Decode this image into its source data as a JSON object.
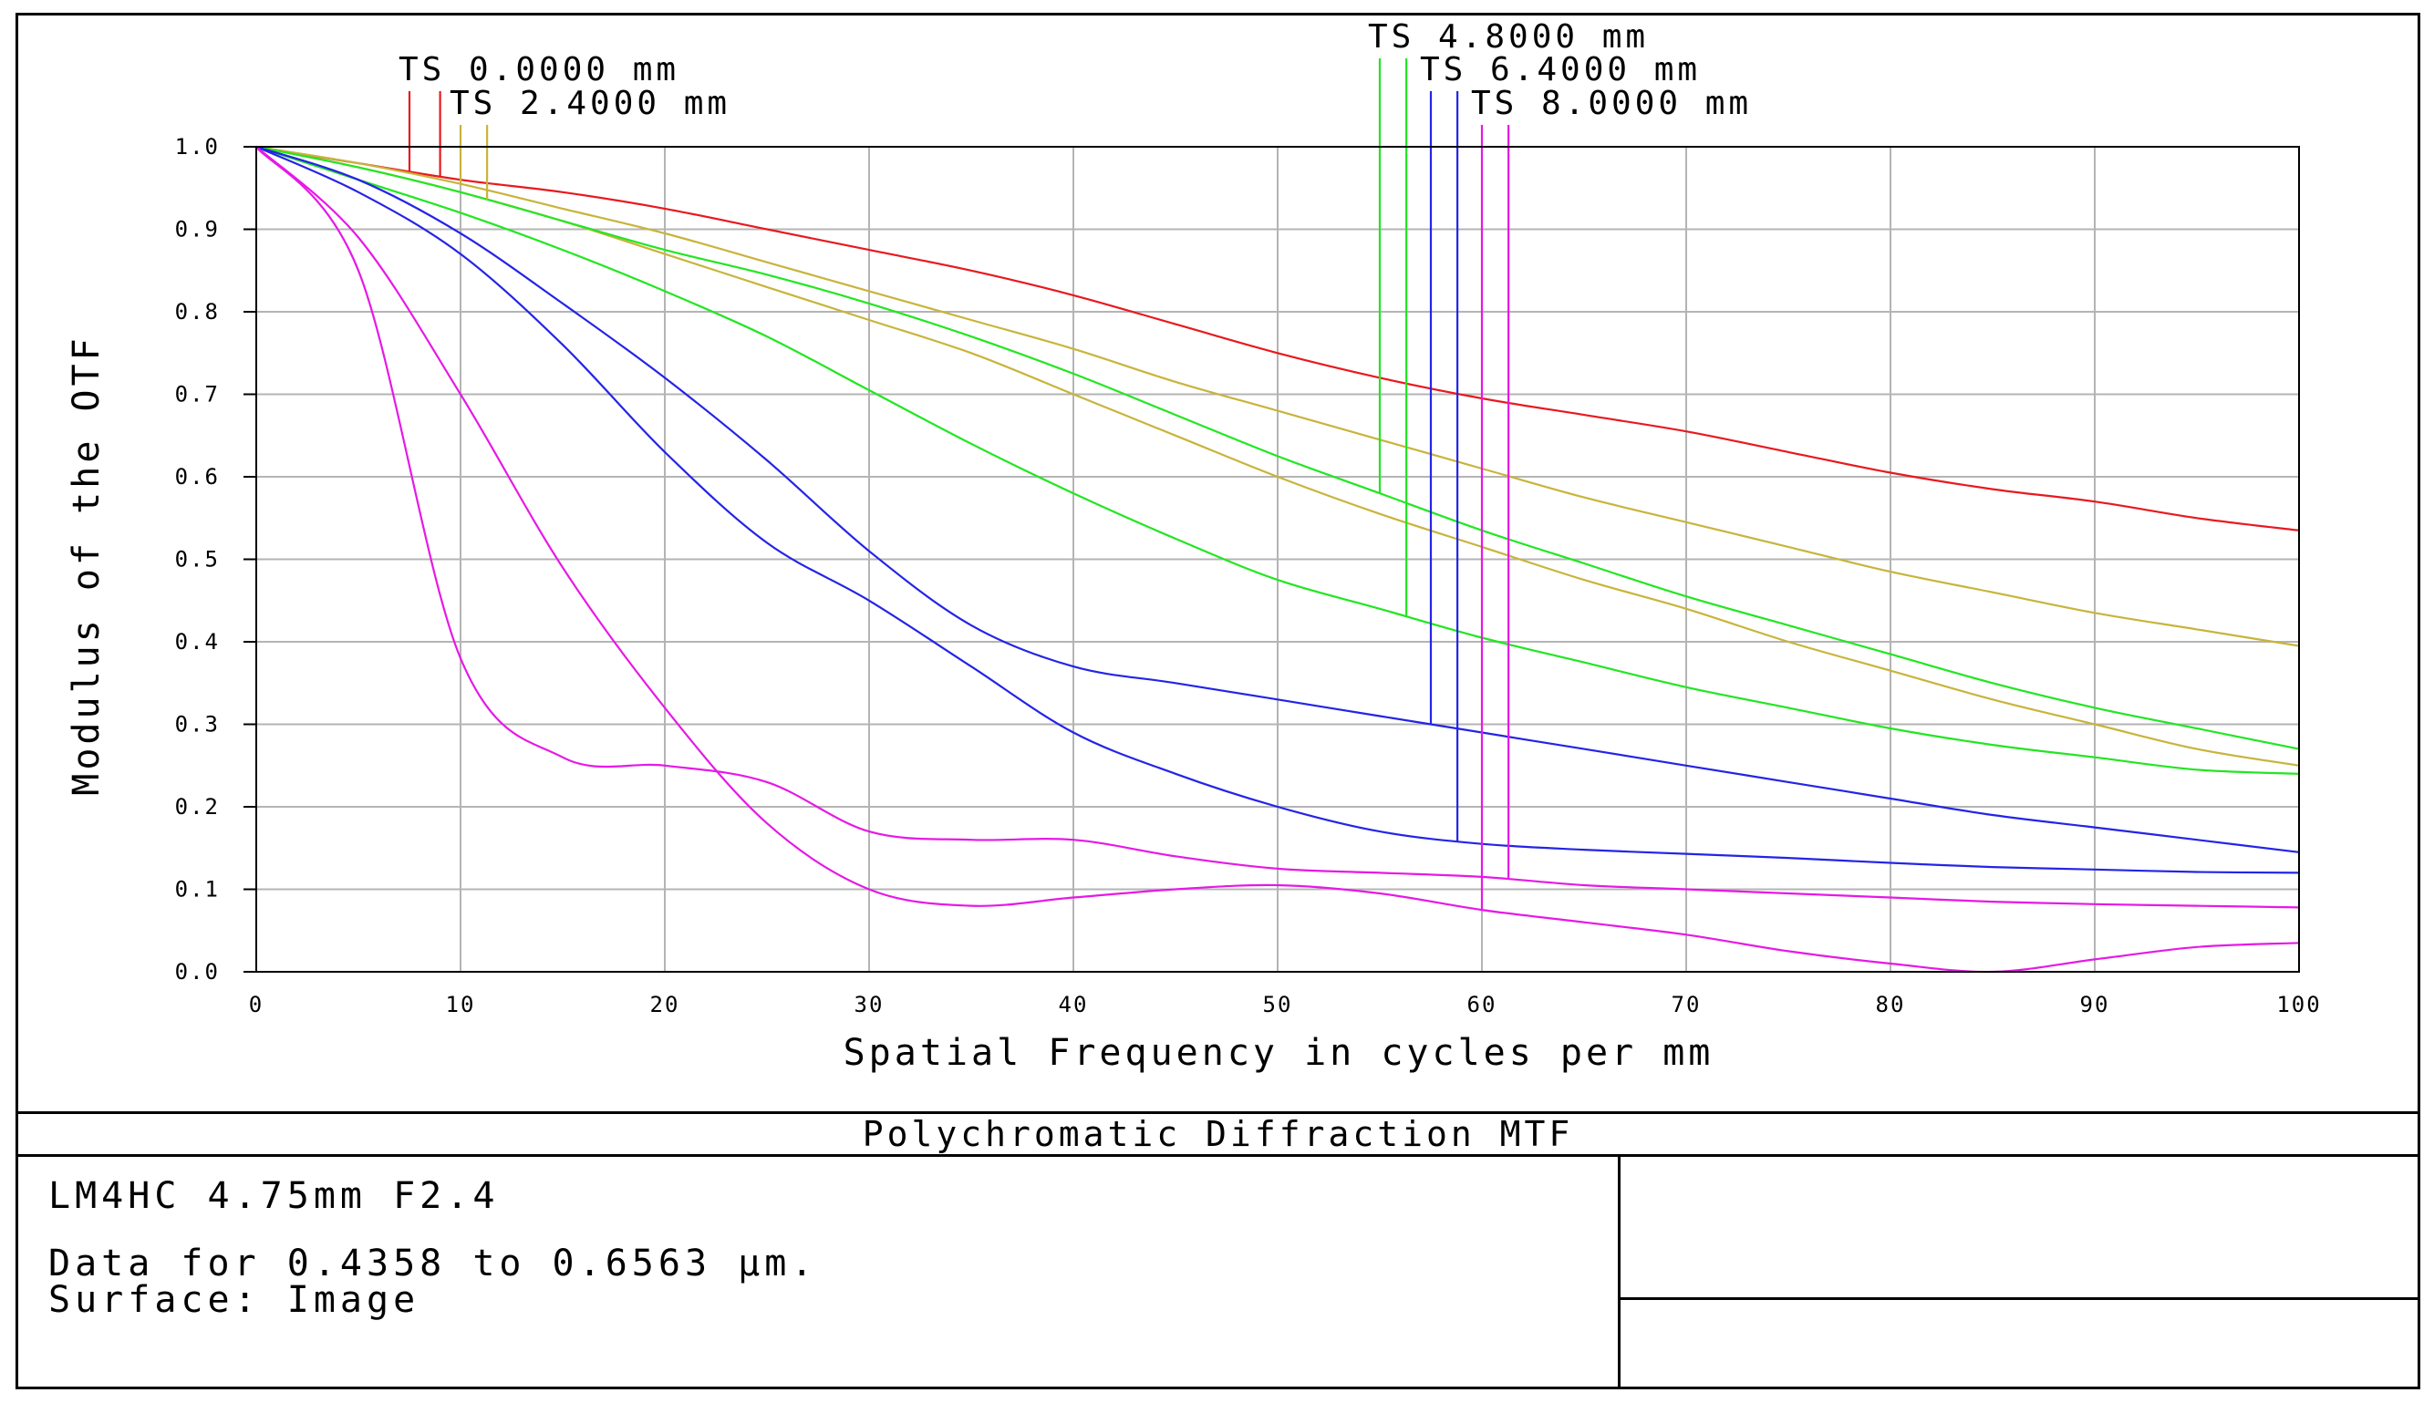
{
  "chart_data": {
    "type": "line",
    "title": "Polychromatic Diffraction MTF",
    "xlabel": "Spatial Frequency in cycles per mm",
    "ylabel": "Modulus of the OTF",
    "xlim": [
      0,
      100
    ],
    "ylim": [
      0,
      1
    ],
    "xticks": [
      0,
      10,
      20,
      30,
      40,
      50,
      60,
      70,
      80,
      90,
      100
    ],
    "yticks": [
      "0.0",
      "0.1",
      "0.2",
      "0.3",
      "0.4",
      "0.5",
      "0.6",
      "0.7",
      "0.8",
      "0.9",
      "1.0"
    ],
    "grid": true,
    "x": [
      0,
      5,
      10,
      15,
      20,
      25,
      30,
      35,
      40,
      45,
      50,
      55,
      60,
      65,
      70,
      75,
      80,
      85,
      90,
      95,
      100
    ],
    "series": [
      {
        "name": "TS 0.0000 mm",
        "color": "#e8191f",
        "values": [
          1.0,
          0.98,
          0.96,
          0.945,
          0.925,
          0.9,
          0.875,
          0.85,
          0.82,
          0.785,
          0.75,
          0.72,
          0.695,
          0.675,
          0.655,
          0.63,
          0.605,
          0.585,
          0.57,
          0.55,
          0.535
        ]
      },
      {
        "name": "TS 2.4000 mm",
        "color": "#c8b43c",
        "values": [
          1.0,
          0.98,
          0.955,
          0.925,
          0.895,
          0.86,
          0.825,
          0.79,
          0.755,
          0.715,
          0.68,
          0.645,
          0.61,
          0.575,
          0.545,
          0.515,
          0.485,
          0.46,
          0.435,
          0.415,
          0.395
        ]
      },
      {
        "name": "",
        "color": "#c8b43c",
        "values": [
          1.0,
          0.975,
          0.945,
          0.91,
          0.87,
          0.83,
          0.79,
          0.75,
          0.7,
          0.65,
          0.6,
          0.555,
          0.515,
          0.475,
          0.44,
          0.4,
          0.365,
          0.33,
          0.3,
          0.27,
          0.25
        ]
      },
      {
        "name": "TS 4.8000 mm",
        "color": "#22e622",
        "values": [
          1.0,
          0.975,
          0.945,
          0.91,
          0.875,
          0.845,
          0.81,
          0.77,
          0.725,
          0.675,
          0.625,
          0.58,
          0.535,
          0.495,
          0.455,
          0.42,
          0.385,
          0.35,
          0.32,
          0.295,
          0.27
        ]
      },
      {
        "name": "",
        "color": "#22e622",
        "values": [
          1.0,
          0.96,
          0.92,
          0.875,
          0.825,
          0.77,
          0.705,
          0.64,
          0.58,
          0.525,
          0.475,
          0.44,
          0.405,
          0.375,
          0.345,
          0.32,
          0.295,
          0.275,
          0.26,
          0.245,
          0.24
        ]
      },
      {
        "name": "TS 6.4000 mm",
        "color": "#2424e6",
        "values": [
          1.0,
          0.96,
          0.895,
          0.81,
          0.72,
          0.62,
          0.51,
          0.42,
          0.37,
          0.35,
          0.33,
          0.31,
          0.29,
          0.27,
          0.25,
          0.23,
          0.21,
          0.19,
          0.175,
          0.16,
          0.145
        ]
      },
      {
        "name": "",
        "color": "#2424e6",
        "values": [
          1.0,
          0.945,
          0.87,
          0.76,
          0.63,
          0.52,
          0.45,
          0.37,
          0.29,
          0.24,
          0.2,
          0.17,
          0.155,
          0.148,
          0.143,
          0.138,
          0.132,
          0.127,
          0.124,
          0.121,
          0.12
        ]
      },
      {
        "name": "TS 8.0000 mm",
        "color": "#e619e6",
        "values": [
          1.0,
          0.89,
          0.7,
          0.49,
          0.32,
          0.18,
          0.1,
          0.08,
          0.09,
          0.1,
          0.105,
          0.095,
          0.075,
          0.06,
          0.045,
          0.025,
          0.01,
          0.0,
          0.015,
          0.03,
          0.035
        ]
      },
      {
        "name": "",
        "color": "#e619e6",
        "values": [
          1.0,
          0.85,
          0.38,
          0.26,
          0.25,
          0.23,
          0.17,
          0.16,
          0.16,
          0.14,
          0.125,
          0.12,
          0.115,
          0.105,
          0.1,
          0.095,
          0.09,
          0.085,
          0.082,
          0.08,
          0.078
        ]
      }
    ],
    "legend": [
      {
        "label": "TS 0.0000 mm",
        "color": "#e8191f",
        "marker_x": [
          7.5,
          9.0
        ]
      },
      {
        "label": "TS 2.4000 mm",
        "color": "#c8b43c",
        "marker_x": [
          10.0,
          11.3
        ]
      },
      {
        "label": "TS 4.8000 mm",
        "color": "#22e622",
        "marker_x": [
          55.0,
          56.3
        ]
      },
      {
        "label": "TS 6.4000 mm",
        "color": "#2424e6",
        "marker_x": [
          57.5,
          58.8
        ]
      },
      {
        "label": "TS 8.0000 mm",
        "color": "#e619e6",
        "marker_x": [
          60.0,
          61.3
        ]
      }
    ]
  },
  "info": {
    "lens": "LM4HC 4.75mm F2.4",
    "wavelengths": "Data for 0.4358 to 0.6563 µm.",
    "surface": "Surface: Image"
  }
}
